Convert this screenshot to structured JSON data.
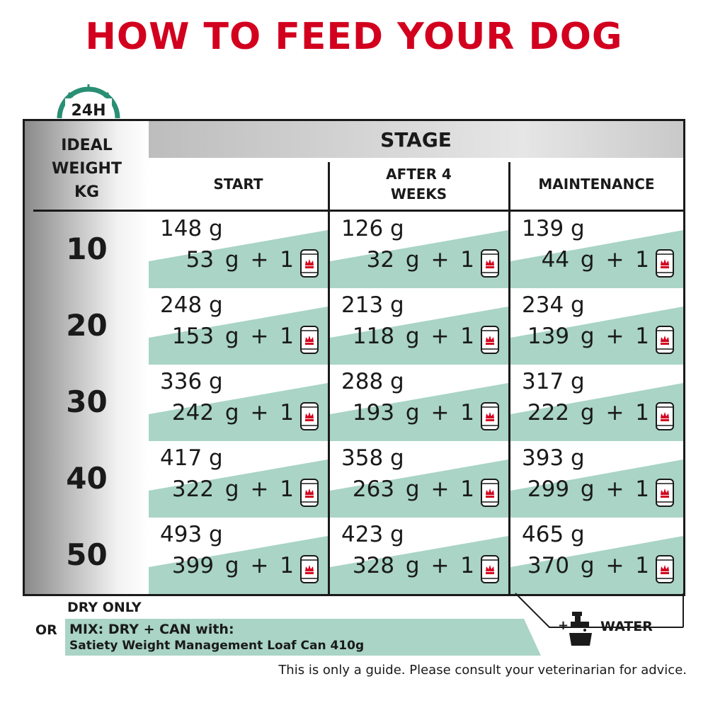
{
  "title": "HOW TO FEED YOUR DOG",
  "badge": "24H",
  "table": {
    "row_header": "IDEAL WEIGHT KG",
    "stage": "STAGE",
    "columns": [
      "START",
      "AFTER 4 WEEKS",
      "MAINTENANCE"
    ],
    "rows": [
      {
        "weight": "10",
        "cells": [
          {
            "dry": "148 g",
            "mix": "53 g + 1"
          },
          {
            "dry": "126 g",
            "mix": "32 g + 1"
          },
          {
            "dry": "139 g",
            "mix": "44 g + 1"
          }
        ]
      },
      {
        "weight": "20",
        "cells": [
          {
            "dry": "248 g",
            "mix": "153 g + 1"
          },
          {
            "dry": "213 g",
            "mix": "118 g + 1"
          },
          {
            "dry": "234 g",
            "mix": "139 g + 1"
          }
        ]
      },
      {
        "weight": "30",
        "cells": [
          {
            "dry": "336 g",
            "mix": "242 g + 1"
          },
          {
            "dry": "288 g",
            "mix": "193 g + 1"
          },
          {
            "dry": "317 g",
            "mix": "222 g + 1"
          }
        ]
      },
      {
        "weight": "40",
        "cells": [
          {
            "dry": "417 g",
            "mix": "322 g + 1"
          },
          {
            "dry": "358 g",
            "mix": "263 g + 1"
          },
          {
            "dry": "393 g",
            "mix": "299 g + 1"
          }
        ]
      },
      {
        "weight": "50",
        "cells": [
          {
            "dry": "493 g",
            "mix": "399 g + 1"
          },
          {
            "dry": "423 g",
            "mix": "328 g + 1"
          },
          {
            "dry": "465 g",
            "mix": "370 g + 1"
          }
        ]
      }
    ]
  },
  "legend": {
    "dry": "DRY ONLY",
    "or": "OR",
    "mix": "MIX: DRY + CAN with:",
    "product": "Satiety Weight Management Loaf Can 410g",
    "plus": "+",
    "water": "WATER"
  },
  "footnote": "This is only a guide. Please consult your veterinarian for advice."
}
